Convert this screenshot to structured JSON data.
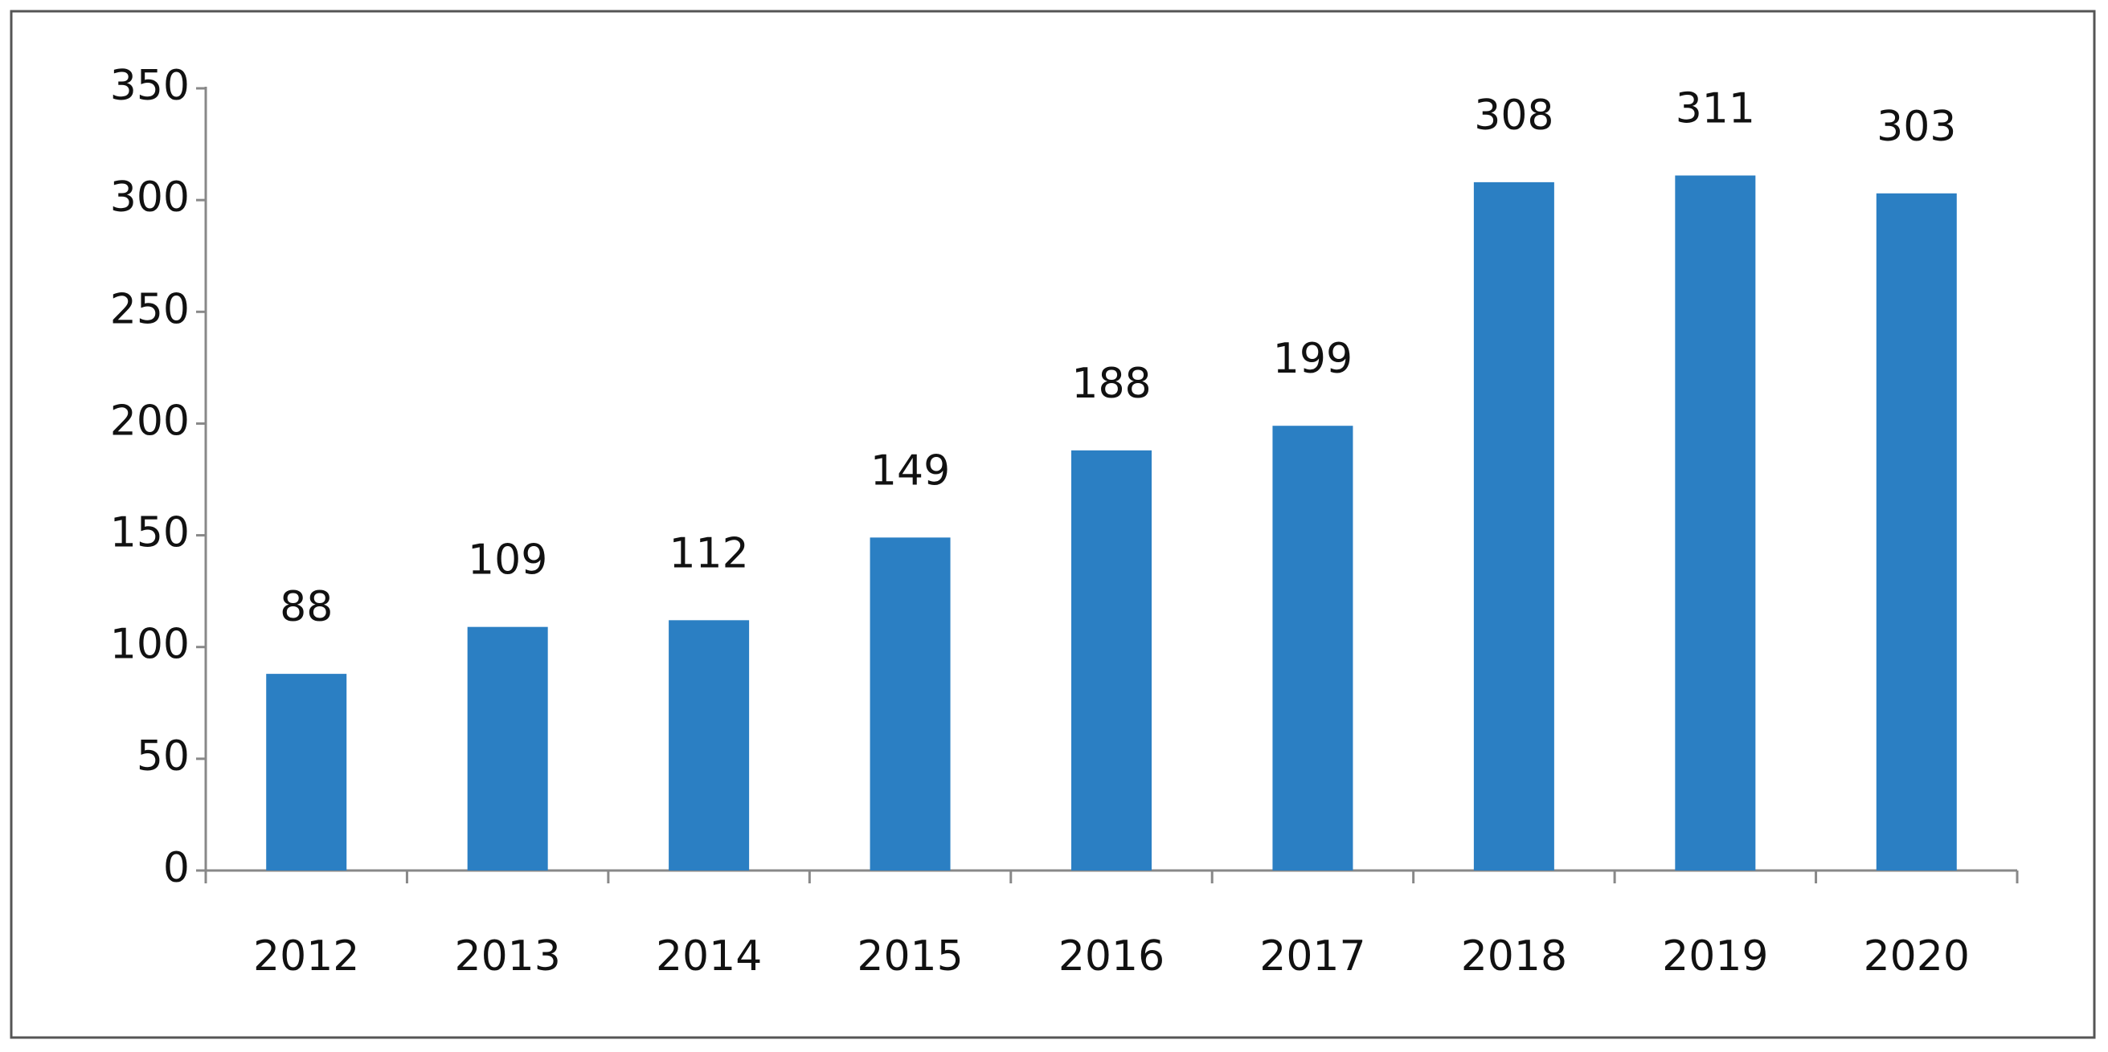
{
  "chart_data": {
    "type": "bar",
    "categories": [
      "2012",
      "2013",
      "2014",
      "2015",
      "2016",
      "2017",
      "2018",
      "2019",
      "2020"
    ],
    "values": [
      88,
      109,
      112,
      149,
      188,
      199,
      308,
      311,
      303
    ],
    "color": "#2b7fc3",
    "ylim": [
      0,
      350
    ],
    "yticks": [
      0,
      50,
      100,
      150,
      200,
      250,
      300,
      350
    ],
    "grid": false
  }
}
